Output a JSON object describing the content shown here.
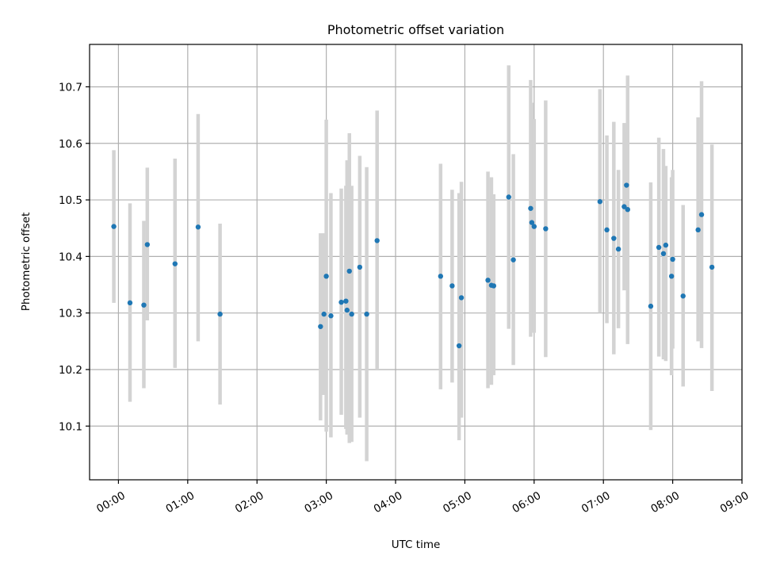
{
  "chart_data": {
    "type": "scatter",
    "title": "Photometric offset variation",
    "xlabel": "UTC time",
    "ylabel": "Photometric offset",
    "xlim": [
      "23:35",
      "09:00"
    ],
    "ylim": [
      10.005,
      10.775
    ],
    "x_ticks": [
      "00:00",
      "01:00",
      "02:00",
      "03:00",
      "04:00",
      "05:00",
      "06:00",
      "07:00",
      "08:00",
      "09:00"
    ],
    "y_ticks": [
      "10.1",
      "10.2",
      "10.3",
      "10.4",
      "10.5",
      "10.6",
      "10.7"
    ],
    "grid": true,
    "colors": {
      "point": "#1f77b4",
      "errorbar": "#d3d3d3"
    },
    "series": [
      {
        "x": [
          "23:56",
          "00:10",
          "00:22",
          "00:25",
          "00:49",
          "01:09",
          "01:28",
          "02:55",
          "02:58",
          "03:00",
          "03:04",
          "03:13",
          "03:17",
          "03:18",
          "03:20",
          "03:22",
          "03:29",
          "03:35",
          "03:44",
          "04:39",
          "04:49",
          "04:55",
          "04:57",
          "05:20",
          "05:23",
          "05:25",
          "05:38",
          "05:42",
          "05:57",
          "05:58",
          "06:00",
          "06:10",
          "06:57",
          "07:03",
          "07:09",
          "07:13",
          "07:18",
          "07:20",
          "07:21",
          "07:41",
          "07:48",
          "07:52",
          "07:54",
          "07:59",
          "08:00",
          "08:09",
          "08:22",
          "08:25",
          "08:34"
        ],
        "y": [
          10.453,
          10.318,
          10.314,
          10.421,
          10.387,
          10.452,
          10.298,
          10.276,
          10.298,
          10.365,
          10.295,
          10.319,
          10.321,
          10.305,
          10.374,
          10.298,
          10.381,
          10.298,
          10.428,
          10.365,
          10.348,
          10.242,
          10.327,
          10.358,
          10.349,
          10.348,
          10.505,
          10.394,
          10.485,
          10.46,
          10.453,
          10.449,
          10.497,
          10.447,
          10.432,
          10.413,
          10.488,
          10.526,
          10.483,
          10.312,
          10.416,
          10.405,
          10.42,
          10.365,
          10.395,
          10.33,
          10.447,
          10.474,
          10.381
        ],
        "err_low": [
          10.318,
          10.143,
          10.167,
          10.287,
          10.203,
          10.25,
          10.138,
          10.11,
          10.155,
          10.09,
          10.08,
          10.12,
          10.095,
          10.085,
          10.07,
          10.072,
          10.115,
          10.038,
          10.2,
          10.165,
          10.177,
          10.075,
          10.115,
          10.167,
          10.173,
          10.19,
          10.272,
          10.208,
          10.258,
          10.268,
          10.265,
          10.222,
          10.3,
          10.282,
          10.227,
          10.273,
          10.34,
          10.37,
          10.245,
          10.093,
          10.223,
          10.218,
          10.215,
          10.19,
          10.237,
          10.17,
          10.25,
          10.238,
          10.162
        ],
        "err_high": [
          10.588,
          10.494,
          10.463,
          10.557,
          10.573,
          10.652,
          10.458,
          10.441,
          10.441,
          10.642,
          10.512,
          10.52,
          10.525,
          10.57,
          10.618,
          10.525,
          10.578,
          10.558,
          10.658,
          10.564,
          10.518,
          10.512,
          10.532,
          10.55,
          10.54,
          10.51,
          10.738,
          10.581,
          10.712,
          10.672,
          10.643,
          10.676,
          10.696,
          10.614,
          10.638,
          10.553,
          10.636,
          10.62,
          10.72,
          10.531,
          10.61,
          10.59,
          10.56,
          10.54,
          10.553,
          10.491,
          10.646,
          10.71,
          10.598
        ]
      }
    ]
  }
}
